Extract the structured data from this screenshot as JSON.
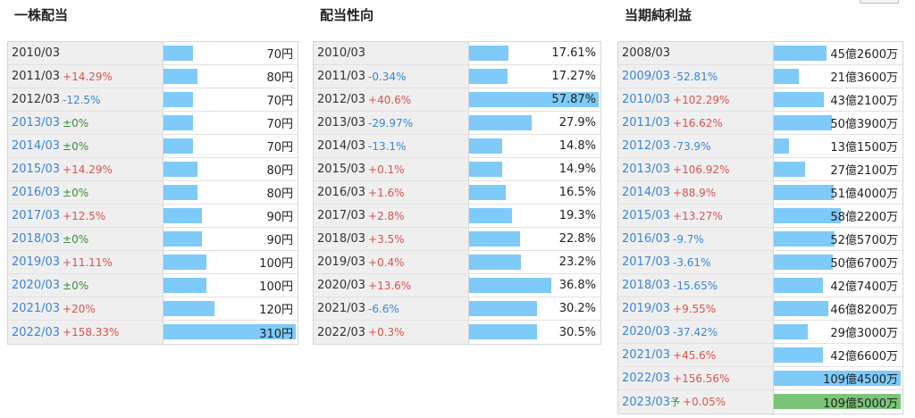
{
  "panels": [
    {
      "title": "一株配当",
      "unit": "円",
      "rows": [
        {
          "year": "2010/03",
          "change": "",
          "link": false
        },
        {
          "year": "2011/03",
          "change": "+14.29%",
          "link": false
        },
        {
          "year": "2012/03",
          "change": "-12.5%",
          "link": false
        },
        {
          "year": "2013/03",
          "change": "±0%",
          "link": true
        },
        {
          "year": "2014/03",
          "change": "±0%",
          "link": true
        },
        {
          "year": "2015/03",
          "change": "+14.29%",
          "link": true
        },
        {
          "year": "2016/03",
          "change": "±0%",
          "link": true
        },
        {
          "year": "2017/03",
          "change": "+12.5%",
          "link": true
        },
        {
          "year": "2018/03",
          "change": "±0%",
          "link": true
        },
        {
          "year": "2019/03",
          "change": "+11.11%",
          "link": true
        },
        {
          "year": "2020/03",
          "change": "±0%",
          "link": true
        },
        {
          "year": "2021/03",
          "change": "+20%",
          "link": true
        },
        {
          "year": "2022/03",
          "change": "+158.33%",
          "link": true
        }
      ]
    },
    {
      "title": "配当性向",
      "unit": "%",
      "rows": [
        {
          "year": "2010/03",
          "change": "",
          "link": false
        },
        {
          "year": "2011/03",
          "change": "-0.34%",
          "link": false
        },
        {
          "year": "2012/03",
          "change": "+40.6%",
          "link": false
        },
        {
          "year": "2013/03",
          "change": "-29.97%",
          "link": false
        },
        {
          "year": "2014/03",
          "change": "-13.1%",
          "link": false
        },
        {
          "year": "2015/03",
          "change": "+0.1%",
          "link": false
        },
        {
          "year": "2016/03",
          "change": "+1.6%",
          "link": false
        },
        {
          "year": "2017/03",
          "change": "+2.8%",
          "link": false
        },
        {
          "year": "2018/03",
          "change": "+3.5%",
          "link": false
        },
        {
          "year": "2019/03",
          "change": "+0.4%",
          "link": false
        },
        {
          "year": "2020/03",
          "change": "+13.6%",
          "link": false
        },
        {
          "year": "2021/03",
          "change": "-6.6%",
          "link": false
        },
        {
          "year": "2022/03",
          "change": "+0.3%",
          "link": false
        }
      ]
    },
    {
      "title": "当期純利益",
      "unit": "",
      "rows": [
        {
          "year": "2008/03",
          "change": "",
          "link": false
        },
        {
          "year": "2009/03",
          "change": "-52.81%",
          "link": true
        },
        {
          "year": "2010/03",
          "change": "+102.29%",
          "link": true
        },
        {
          "year": "2011/03",
          "change": "+16.62%",
          "link": true
        },
        {
          "year": "2012/03",
          "change": "-73.9%",
          "link": true
        },
        {
          "year": "2013/03",
          "change": "+106.92%",
          "link": true
        },
        {
          "year": "2014/03",
          "change": "+88.9%",
          "link": true
        },
        {
          "year": "2015/03",
          "change": "+13.27%",
          "link": true
        },
        {
          "year": "2016/03",
          "change": "-9.7%",
          "link": true
        },
        {
          "year": "2017/03",
          "change": "-3.61%",
          "link": true
        },
        {
          "year": "2018/03",
          "change": "-15.65%",
          "link": true
        },
        {
          "year": "2019/03",
          "change": "+9.55%",
          "link": true
        },
        {
          "year": "2020/03",
          "change": "-37.42%",
          "link": true
        },
        {
          "year": "2021/03",
          "change": "+45.6%",
          "link": true
        },
        {
          "year": "2022/03",
          "change": "+156.56%",
          "link": true
        },
        {
          "year": "2023/03",
          "change": "+0.05%",
          "link": true,
          "forecast_mark": "予",
          "forecast": true
        }
      ]
    }
  ],
  "chart_data": [
    {
      "type": "bar",
      "title": "一株配当",
      "categories": [
        "2010/03",
        "2011/03",
        "2012/03",
        "2013/03",
        "2014/03",
        "2015/03",
        "2016/03",
        "2017/03",
        "2018/03",
        "2019/03",
        "2020/03",
        "2021/03",
        "2022/03"
      ],
      "values": [
        70,
        80,
        70,
        70,
        70,
        80,
        80,
        90,
        90,
        100,
        100,
        120,
        310
      ],
      "value_labels": [
        "70円",
        "80円",
        "70円",
        "70円",
        "70円",
        "80円",
        "80円",
        "90円",
        "90円",
        "100円",
        "100円",
        "120円",
        "310円"
      ],
      "color": "#7ecaf8"
    },
    {
      "type": "bar",
      "title": "配当性向",
      "categories": [
        "2010/03",
        "2011/03",
        "2012/03",
        "2013/03",
        "2014/03",
        "2015/03",
        "2016/03",
        "2017/03",
        "2018/03",
        "2019/03",
        "2020/03",
        "2021/03",
        "2022/03"
      ],
      "values": [
        17.61,
        17.27,
        57.87,
        27.9,
        14.8,
        14.9,
        16.5,
        19.3,
        22.8,
        23.2,
        36.8,
        30.2,
        30.5
      ],
      "value_labels": [
        "17.61%",
        "17.27%",
        "57.87%",
        "27.9%",
        "14.8%",
        "14.9%",
        "16.5%",
        "19.3%",
        "22.8%",
        "23.2%",
        "36.8%",
        "30.2%",
        "30.5%"
      ],
      "color": "#7ecaf8"
    },
    {
      "type": "bar",
      "title": "当期純利益",
      "categories": [
        "2008/03",
        "2009/03",
        "2010/03",
        "2011/03",
        "2012/03",
        "2013/03",
        "2014/03",
        "2015/03",
        "2016/03",
        "2017/03",
        "2018/03",
        "2019/03",
        "2020/03",
        "2021/03",
        "2022/03",
        "2023/03"
      ],
      "values": [
        4526000000,
        2136000000,
        4321000000,
        5039000000,
        1315000000,
        2721000000,
        5140000000,
        5822000000,
        5257000000,
        5067000000,
        4274000000,
        4682000000,
        2930000000,
        4266000000,
        10945000000,
        10950000000
      ],
      "value_labels": [
        "45億2600万",
        "21億3600万",
        "43億2100万",
        "50億3900万",
        "13億1500万",
        "27億2100万",
        "51億4000万",
        "58億2200万",
        "52億5700万",
        "50億6700万",
        "42億7400万",
        "46億8200万",
        "29億3000万",
        "42億6600万",
        "109億4500万",
        "109億5000万"
      ],
      "color": "#7ecaf8",
      "forecast_color": "#7cc47a"
    }
  ]
}
